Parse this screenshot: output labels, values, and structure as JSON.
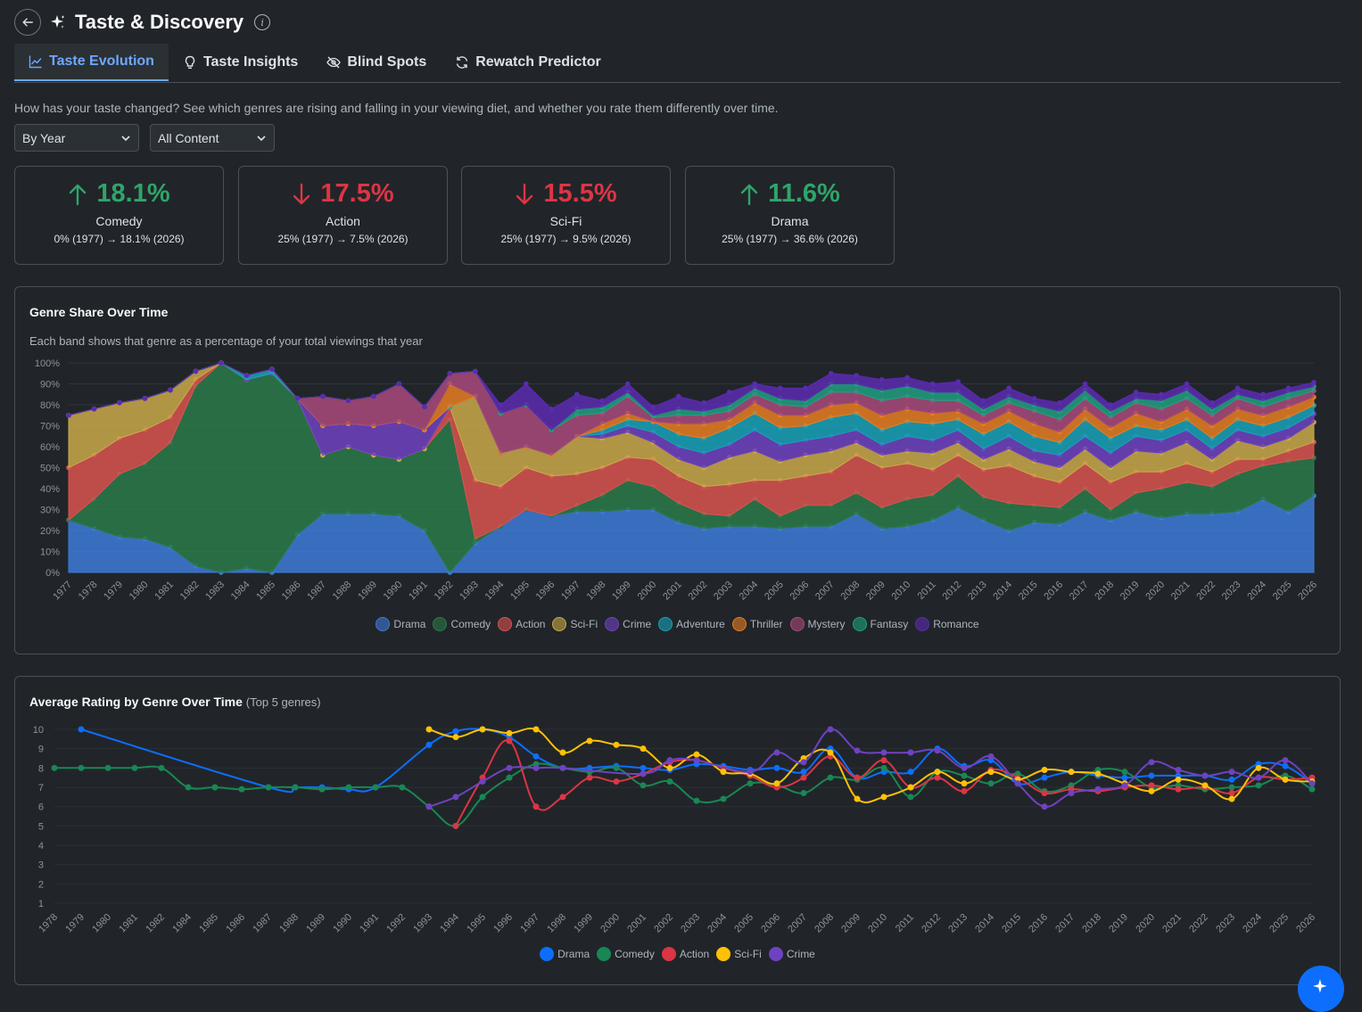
{
  "page": {
    "title": "Taste & Discovery",
    "description": "How has your taste changed? See which genres are rising and falling in your viewing diet, and whether you rate them differently over time."
  },
  "tabs": [
    {
      "label": "Taste Evolution",
      "icon": "chart-line-icon",
      "active": true
    },
    {
      "label": "Taste Insights",
      "icon": "lightbulb-icon",
      "active": false
    },
    {
      "label": "Blind Spots",
      "icon": "eye-slash-icon",
      "active": false
    },
    {
      "label": "Rewatch Predictor",
      "icon": "refresh-icon",
      "active": false
    }
  ],
  "filters": {
    "period": "By Year",
    "content": "All Content"
  },
  "stats": [
    {
      "value": "18.1%",
      "direction": "up",
      "genre": "Comedy",
      "detail": "0% (1977) → 18.1% (2026)"
    },
    {
      "value": "17.5%",
      "direction": "down",
      "genre": "Action",
      "detail": "25% (1977) → 7.5% (2026)"
    },
    {
      "value": "15.5%",
      "direction": "down",
      "genre": "Sci-Fi",
      "detail": "25% (1977) → 9.5% (2026)"
    },
    {
      "value": "11.6%",
      "direction": "up",
      "genre": "Drama",
      "detail": "25% (1977) → 36.6% (2026)"
    }
  ],
  "share_card": {
    "title": "Genre Share Over Time",
    "subtitle": "Each band shows that genre as a percentage of your total viewings that year"
  },
  "rating_card": {
    "title": "Average Rating by Genre Over Time",
    "title_note": "(Top 5 genres)"
  },
  "chart_data": [
    {
      "type": "area",
      "title": "Genre Share Over Time",
      "stacked": true,
      "x": [
        1977,
        1978,
        1979,
        1980,
        1981,
        1982,
        1983,
        1984,
        1985,
        1986,
        1987,
        1988,
        1989,
        1990,
        1991,
        1992,
        1993,
        1994,
        1995,
        1996,
        1997,
        1998,
        1999,
        2000,
        2001,
        2002,
        2003,
        2004,
        2005,
        2006,
        2007,
        2008,
        2009,
        2010,
        2011,
        2012,
        2013,
        2014,
        2015,
        2016,
        2017,
        2018,
        2019,
        2020,
        2021,
        2022,
        2023,
        2024,
        2025,
        2026
      ],
      "yticks": [
        "0%",
        "10%",
        "20%",
        "30%",
        "40%",
        "50%",
        "60%",
        "70%",
        "80%",
        "90%",
        "100%"
      ],
      "ylim": [
        0,
        100
      ],
      "legend_position": "bottom",
      "series": [
        {
          "name": "Drama",
          "color": "#3d7bd8",
          "values": [
            25,
            21,
            17,
            16,
            12,
            3,
            0,
            2,
            0,
            18,
            28,
            28,
            28,
            27,
            20,
            0,
            14,
            22,
            30,
            27,
            29,
            29,
            30,
            30,
            24,
            21,
            22,
            22,
            21,
            22,
            22,
            28,
            21,
            22,
            25,
            31,
            25,
            20,
            24,
            23,
            29,
            25,
            29,
            26,
            28,
            28,
            29,
            35,
            29,
            36.6
          ]
        },
        {
          "name": "Comedy",
          "color": "#2a7a4a",
          "values": [
            0,
            14,
            30,
            36,
            50,
            86,
            100,
            90,
            95,
            65,
            28,
            32,
            28,
            27,
            39,
            73,
            2,
            0,
            0,
            0,
            3,
            8,
            14,
            11,
            9,
            7,
            5,
            13,
            6,
            10,
            10,
            10,
            10,
            13,
            12,
            15,
            11,
            13,
            8,
            8,
            11,
            5,
            9,
            14,
            15,
            13,
            18,
            16,
            24,
            18.1
          ]
        },
        {
          "name": "Action",
          "color": "#d9534f",
          "values": [
            25,
            21,
            17,
            16,
            12,
            3,
            0,
            0,
            0,
            0,
            0,
            0,
            0,
            0,
            0,
            6,
            28,
            19,
            20,
            19,
            15,
            13,
            11,
            13,
            13,
            13,
            15,
            9,
            17,
            14,
            16,
            18,
            19,
            17,
            12,
            10,
            13,
            18,
            14,
            12,
            12,
            13,
            10,
            8,
            9,
            7,
            7,
            3,
            5,
            7.5
          ]
        },
        {
          "name": "Sci-Fi",
          "color": "#c9a94a",
          "values": [
            25,
            22,
            17,
            15,
            13,
            4,
            0,
            0,
            0,
            0,
            0,
            0,
            0,
            0,
            0,
            0,
            40,
            16,
            10,
            10,
            18,
            14,
            12,
            8,
            8,
            9,
            13,
            14,
            9,
            10,
            10,
            6,
            6,
            6,
            8,
            6,
            5,
            8,
            7,
            7,
            7,
            7,
            10,
            9,
            10,
            6,
            9,
            6,
            6,
            9.5
          ]
        },
        {
          "name": "Crime",
          "color": "#6f42c1",
          "values": [
            0,
            0,
            0,
            0,
            0,
            0,
            0,
            0,
            0,
            0,
            14,
            11,
            14,
            18,
            9,
            0,
            0,
            0,
            0,
            0,
            0,
            2,
            3,
            5,
            6,
            7,
            6,
            10,
            8,
            7,
            7,
            6,
            5,
            7,
            6,
            6,
            5,
            6,
            5,
            6,
            6,
            7,
            7,
            6,
            6,
            5,
            5,
            5,
            5,
            4
          ]
        },
        {
          "name": "Adventure",
          "color": "#17a2b8",
          "values": [
            0,
            0,
            0,
            0,
            0,
            0,
            0,
            2,
            2,
            0,
            0,
            0,
            0,
            0,
            0,
            0,
            0,
            0,
            0,
            0,
            0,
            2,
            3,
            5,
            6,
            7,
            8,
            8,
            8,
            7,
            9,
            8,
            7,
            7,
            8,
            5,
            7,
            7,
            7,
            6,
            8,
            7,
            5,
            5,
            5,
            5,
            5,
            5,
            5,
            4
          ]
        },
        {
          "name": "Thriller",
          "color": "#e67e22",
          "values": [
            0,
            0,
            0,
            0,
            0,
            0,
            0,
            0,
            0,
            0,
            0,
            0,
            0,
            0,
            0,
            11,
            0,
            0,
            0,
            0,
            0,
            3,
            3,
            0,
            5,
            7,
            4,
            5,
            6,
            5,
            6,
            5,
            7,
            6,
            5,
            4,
            5,
            5,
            6,
            5,
            5,
            5,
            6,
            4,
            5,
            6,
            5,
            5,
            5,
            4
          ]
        },
        {
          "name": "Mystery",
          "color": "#a84a7a",
          "values": [
            0,
            0,
            0,
            0,
            0,
            0,
            0,
            0,
            0,
            0,
            14,
            11,
            14,
            18,
            11,
            5,
            12,
            19,
            20,
            12,
            10,
            5,
            8,
            2,
            4,
            4,
            4,
            4,
            5,
            4,
            6,
            5,
            7,
            6,
            6,
            5,
            4,
            4,
            6,
            6,
            5,
            5,
            5,
            6,
            5,
            5,
            5,
            4,
            4,
            3
          ]
        },
        {
          "name": "Fantasy",
          "color": "#20a080",
          "values": [
            0,
            0,
            0,
            0,
            0,
            0,
            0,
            0,
            0,
            0,
            0,
            0,
            0,
            0,
            0,
            0,
            0,
            0,
            0,
            0,
            3,
            3,
            2,
            1,
            3,
            2,
            3,
            3,
            3,
            3,
            4,
            4,
            5,
            5,
            4,
            4,
            3,
            3,
            3,
            4,
            4,
            3,
            2,
            4,
            4,
            3,
            2,
            3,
            3,
            2
          ]
        },
        {
          "name": "Romance",
          "color": "#5b2bb0",
          "values": [
            0,
            0,
            0,
            0,
            0,
            0,
            0,
            0,
            0,
            0,
            0,
            0,
            0,
            0,
            0,
            0,
            0,
            4,
            10,
            10,
            7,
            3,
            4,
            4,
            6,
            4,
            6,
            2,
            5,
            6,
            5,
            4,
            5,
            4,
            4,
            5,
            4,
            4,
            3,
            4,
            3,
            3,
            3,
            3,
            3,
            3,
            3,
            3,
            2,
            2
          ]
        }
      ]
    },
    {
      "type": "line",
      "title": "Average Rating by Genre Over Time",
      "x": [
        1978,
        1979,
        1980,
        1981,
        1982,
        1984,
        1985,
        1986,
        1987,
        1988,
        1989,
        1990,
        1991,
        1992,
        1993,
        1994,
        1995,
        1996,
        1997,
        1998,
        1999,
        2000,
        2001,
        2002,
        2003,
        2004,
        2005,
        2006,
        2007,
        2008,
        2009,
        2010,
        2011,
        2012,
        2013,
        2014,
        2015,
        2016,
        2017,
        2018,
        2019,
        2020,
        2021,
        2022,
        2023,
        2024,
        2025,
        2026
      ],
      "yticks": [
        1,
        2,
        3,
        4,
        5,
        6,
        7,
        8,
        9,
        10
      ],
      "ylim": [
        1,
        10
      ],
      "legend_position": "bottom",
      "series": [
        {
          "name": "Drama",
          "color": "#0d6efd",
          "values": [
            null,
            10,
            null,
            null,
            null,
            null,
            null,
            null,
            7,
            7,
            7,
            6.9,
            7,
            null,
            9.2,
            9.9,
            10,
            9.6,
            8.6,
            8,
            8,
            8.1,
            8,
            7.9,
            8.2,
            8.1,
            7.9,
            8,
            7.8,
            9,
            7.5,
            7.8,
            7.8,
            9,
            8.1,
            8.4,
            7.2,
            7.5,
            7.8,
            7.6,
            7.5,
            7.6,
            7.6,
            7.6,
            7.4,
            8.2,
            8.1,
            7.2
          ]
        },
        {
          "name": "Comedy",
          "color": "#198754",
          "values": [
            8,
            8,
            8,
            8,
            8,
            7,
            7,
            6.9,
            7,
            7,
            6.9,
            7,
            7,
            7,
            6,
            5,
            6.5,
            7.5,
            8.2,
            8,
            7.8,
            8,
            7.1,
            7.3,
            6.3,
            6.4,
            7.2,
            7.1,
            6.7,
            7.5,
            7.4,
            8,
            6.5,
            7.8,
            7.6,
            7.2,
            7.7,
            6.8,
            7.1,
            7.9,
            7.8,
            7,
            7.1,
            6.9,
            7,
            7.1,
            7.6,
            6.9
          ]
        },
        {
          "name": "Action",
          "color": "#dc3545",
          "values": [
            null,
            null,
            null,
            null,
            null,
            null,
            null,
            null,
            null,
            null,
            null,
            null,
            null,
            null,
            null,
            5,
            7.5,
            9.4,
            6,
            6.5,
            7.5,
            7.3,
            7.7,
            8.3,
            8.4,
            8,
            7.6,
            7,
            7.5,
            8.6,
            7.5,
            8.4,
            7,
            7.5,
            6.8,
            7.9,
            7.5,
            6.7,
            6.9,
            6.8,
            7,
            7.1,
            6.9,
            7,
            6.7,
            7.5,
            7.4,
            7.5
          ]
        },
        {
          "name": "Sci-Fi",
          "color": "#ffc107",
          "values": [
            null,
            null,
            null,
            null,
            null,
            null,
            null,
            null,
            null,
            null,
            null,
            null,
            null,
            null,
            10,
            9.6,
            10,
            9.8,
            10,
            8.8,
            9.4,
            9.2,
            9,
            8,
            8.7,
            7.8,
            7.7,
            7.2,
            8.5,
            8.8,
            6.4,
            6.5,
            7,
            7.8,
            7.2,
            7.8,
            7.4,
            7.9,
            7.8,
            7.7,
            7.2,
            6.8,
            7.4,
            7.1,
            6.4,
            8,
            7.4,
            7.3
          ]
        },
        {
          "name": "Crime",
          "color": "#6f42c1",
          "values": [
            null,
            null,
            null,
            null,
            null,
            null,
            null,
            null,
            null,
            null,
            null,
            null,
            null,
            null,
            6,
            6.5,
            7.3,
            8,
            8,
            8,
            null,
            null,
            7.7,
            8.4,
            8.4,
            null,
            7.8,
            8.8,
            8.3,
            10,
            8.9,
            8.8,
            8.8,
            8.9,
            8,
            8.6,
            7.2,
            6,
            6.7,
            6.9,
            7.1,
            8.3,
            7.9,
            7.6,
            7.8,
            7.5,
            8.4,
            7.2
          ]
        }
      ]
    }
  ]
}
